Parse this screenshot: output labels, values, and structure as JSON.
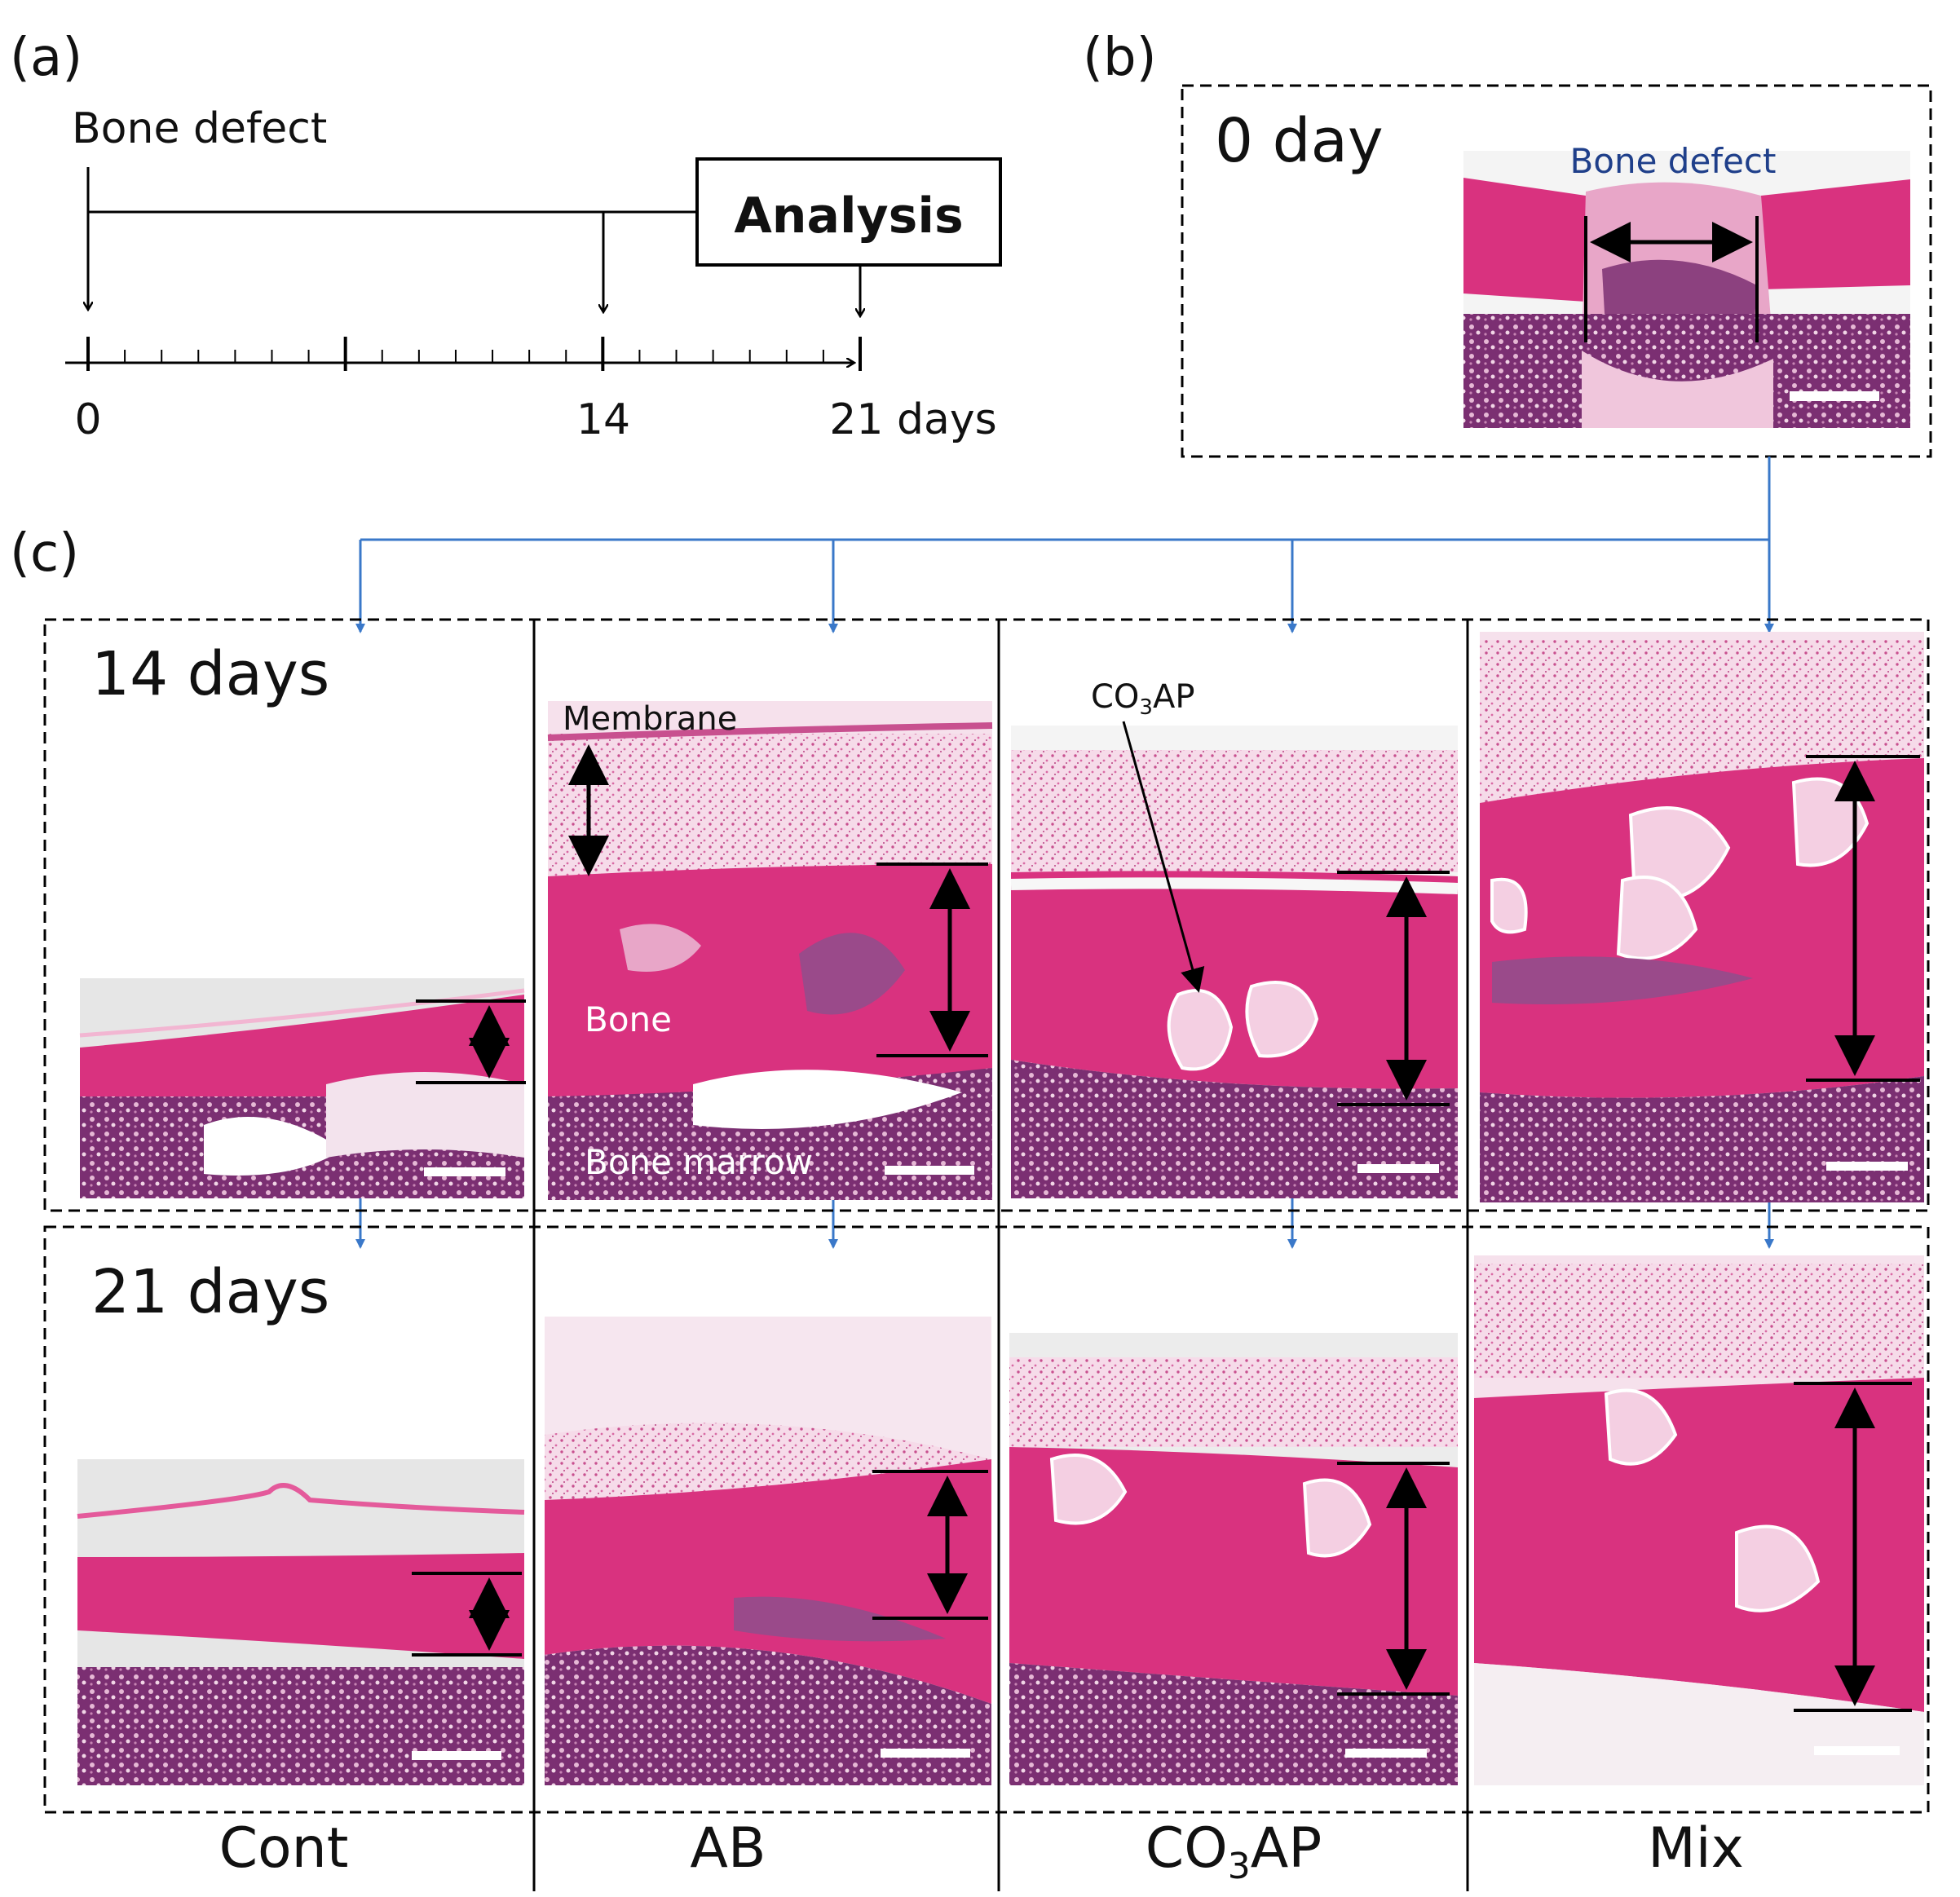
{
  "panels": {
    "a": "(a)",
    "b": "(b)",
    "c": "(c)"
  },
  "timeline": {
    "event_label": "Bone defect",
    "analysis_label": "Analysis",
    "tick_labels": [
      "0",
      "14",
      "21 days"
    ]
  },
  "day0": {
    "label": "0 day",
    "annotation": "Bone defect"
  },
  "rows": [
    {
      "label": "14 days"
    },
    {
      "label": "21 days"
    }
  ],
  "groups": [
    "Cont",
    "AB",
    "CO3AP",
    "Mix"
  ],
  "co3ap": {
    "base": "CO",
    "sub": "3",
    "tail": "AP"
  },
  "annotations": {
    "membrane": "Membrane",
    "bone": "Bone",
    "marrow": "Bone marrow"
  },
  "colors": {
    "bone": "#d9327f",
    "bone_light": "#e45a9b",
    "tissue": "#e8a6c8",
    "marrow": "#7b2f72",
    "dotted": "#f3d1e3",
    "arrow_blue": "#3a78c9",
    "granule": "#f4cfe2",
    "background": "#e8e8e8"
  }
}
